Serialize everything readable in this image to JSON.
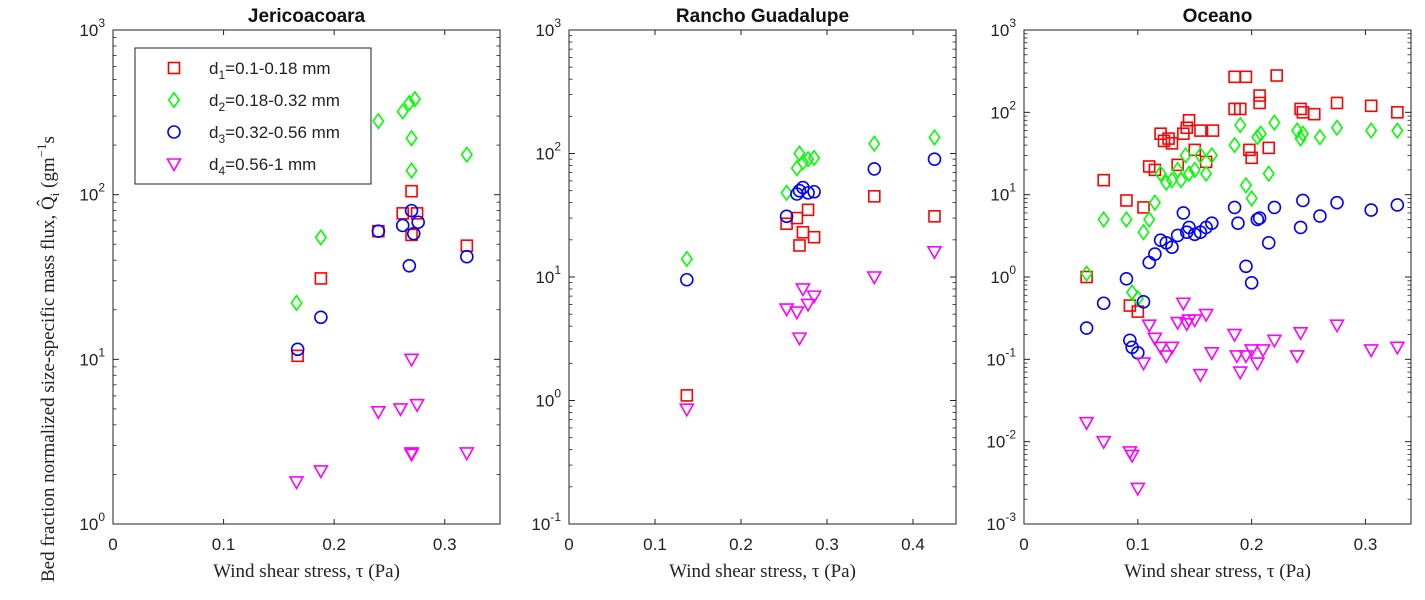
{
  "figure": {
    "ylabel": "Bed fraction normalized size-specific mass flux, Q̂",
    "ylabel_sub": "i",
    "ylabel_units": " (gm",
    "ylabel_units_sup": "−1",
    "ylabel_units_tail": "s"
  },
  "legend": {
    "entries": [
      {
        "prefix": "d",
        "sub": "1",
        "text": "=0.1-0.18 mm",
        "marker": "square",
        "color": "#ff0000"
      },
      {
        "prefix": "d",
        "sub": "2",
        "text": "=0.18-0.32 mm",
        "marker": "diamond",
        "color": "#00ff00"
      },
      {
        "prefix": "d",
        "sub": "3",
        "text": "=0.32-0.56 mm",
        "marker": "circle",
        "color": "#0000ff"
      },
      {
        "prefix": "d",
        "sub": "4",
        "text": "=0.56-1 mm",
        "marker": "triangle",
        "color": "#ff00ff"
      }
    ]
  },
  "chart_data": [
    {
      "type": "scatter",
      "title": "Jericoacoara",
      "xlabel": "Wind shear stress, τ (Pa)",
      "xlim": [
        0,
        0.35
      ],
      "ylim": [
        1,
        1000
      ],
      "yscale": "log",
      "xticks": [
        "0",
        "0.1",
        "0.2",
        "0.3"
      ],
      "xtick_values": [
        0,
        0.1,
        0.2,
        0.3
      ],
      "ytick_exponents": [
        0,
        1,
        2,
        3
      ],
      "series": [
        {
          "name": "d1=0.1-0.18 mm",
          "marker": "square",
          "color": "#ff0000",
          "points": [
            [
              0.167,
              10.5
            ],
            [
              0.188,
              31
            ],
            [
              0.24,
              60
            ],
            [
              0.262,
              77
            ],
            [
              0.27,
              105
            ],
            [
              0.275,
              77
            ],
            [
              0.27,
              57
            ],
            [
              0.32,
              49
            ]
          ]
        },
        {
          "name": "d2=0.18-0.32 mm",
          "marker": "diamond",
          "color": "#00ff00",
          "points": [
            [
              0.166,
              22
            ],
            [
              0.188,
              55
            ],
            [
              0.24,
              280
            ],
            [
              0.262,
              320
            ],
            [
              0.268,
              360
            ],
            [
              0.273,
              380
            ],
            [
              0.27,
              220
            ],
            [
              0.27,
              140
            ],
            [
              0.32,
              175
            ]
          ]
        },
        {
          "name": "d3=0.32-0.56 mm",
          "marker": "circle",
          "color": "#0000ff",
          "points": [
            [
              0.167,
              11.5
            ],
            [
              0.188,
              18
            ],
            [
              0.24,
              60
            ],
            [
              0.262,
              65
            ],
            [
              0.27,
              80
            ],
            [
              0.272,
              58
            ],
            [
              0.268,
              37
            ],
            [
              0.276,
              68
            ],
            [
              0.32,
              42
            ]
          ]
        },
        {
          "name": "d4=0.56-1 mm",
          "marker": "triangle",
          "color": "#ff00ff",
          "points": [
            [
              0.166,
              1.8
            ],
            [
              0.188,
              2.1
            ],
            [
              0.24,
              4.8
            ],
            [
              0.26,
              5
            ],
            [
              0.27,
              10
            ],
            [
              0.275,
              5.3
            ],
            [
              0.27,
              2.7
            ],
            [
              0.27,
              2.65
            ],
            [
              0.32,
              2.7
            ]
          ]
        }
      ]
    },
    {
      "type": "scatter",
      "title": "Rancho Guadalupe",
      "xlabel": "Wind shear stress, τ (Pa)",
      "xlim": [
        0,
        0.45
      ],
      "ylim": [
        0.1,
        1000
      ],
      "yscale": "log",
      "xticks": [
        "0",
        "0.1",
        "0.2",
        "0.3",
        "0.4"
      ],
      "xtick_values": [
        0,
        0.1,
        0.2,
        0.3,
        0.4
      ],
      "ytick_exponents": [
        -1,
        0,
        1,
        2,
        3
      ],
      "series": [
        {
          "name": "d1=0.1-0.18 mm",
          "marker": "square",
          "color": "#ff0000",
          "points": [
            [
              0.137,
              1.1
            ],
            [
              0.253,
              27
            ],
            [
              0.265,
              30
            ],
            [
              0.268,
              18
            ],
            [
              0.272,
              23
            ],
            [
              0.278,
              35
            ],
            [
              0.285,
              21
            ],
            [
              0.355,
              45
            ],
            [
              0.425,
              31
            ]
          ]
        },
        {
          "name": "d2=0.18-0.32 mm",
          "marker": "diamond",
          "color": "#00ff00",
          "points": [
            [
              0.137,
              14
            ],
            [
              0.253,
              48
            ],
            [
              0.265,
              76
            ],
            [
              0.268,
              100
            ],
            [
              0.272,
              85
            ],
            [
              0.278,
              90
            ],
            [
              0.285,
              92
            ],
            [
              0.355,
              120
            ],
            [
              0.425,
              135
            ]
          ]
        },
        {
          "name": "d3=0.32-0.56 mm",
          "marker": "circle",
          "color": "#0000ff",
          "points": [
            [
              0.137,
              9.5
            ],
            [
              0.253,
              31
            ],
            [
              0.265,
              47
            ],
            [
              0.268,
              50
            ],
            [
              0.272,
              53
            ],
            [
              0.278,
              48
            ],
            [
              0.285,
              49
            ],
            [
              0.355,
              75
            ],
            [
              0.425,
              90
            ]
          ]
        },
        {
          "name": "d4=0.56-1 mm",
          "marker": "triangle",
          "color": "#ff00ff",
          "points": [
            [
              0.137,
              0.85
            ],
            [
              0.253,
              5.5
            ],
            [
              0.265,
              5.2
            ],
            [
              0.268,
              3.2
            ],
            [
              0.272,
              8
            ],
            [
              0.278,
              6
            ],
            [
              0.285,
              7
            ],
            [
              0.355,
              10
            ],
            [
              0.425,
              16
            ]
          ]
        }
      ]
    },
    {
      "type": "scatter",
      "title": "Oceano",
      "xlabel": "Wind shear stress, τ (Pa)",
      "xlim": [
        0,
        0.34
      ],
      "ylim": [
        0.001,
        1000
      ],
      "yscale": "log",
      "xticks": [
        "0",
        "0.1",
        "0.2",
        "0.3"
      ],
      "xtick_values": [
        0,
        0.1,
        0.2,
        0.3
      ],
      "ytick_exponents": [
        -3,
        -2,
        -1,
        0,
        1,
        2,
        3
      ],
      "series": [
        {
          "name": "d1=0.1-0.18 mm",
          "marker": "square",
          "color": "#ff0000",
          "points": [
            [
              0.055,
              1
            ],
            [
              0.07,
              15
            ],
            [
              0.09,
              8.5
            ],
            [
              0.093,
              0.45
            ],
            [
              0.1,
              0.38
            ],
            [
              0.105,
              7
            ],
            [
              0.11,
              22
            ],
            [
              0.115,
              20
            ],
            [
              0.12,
              55
            ],
            [
              0.123,
              45
            ],
            [
              0.127,
              48
            ],
            [
              0.13,
              42
            ],
            [
              0.135,
              23
            ],
            [
              0.14,
              55
            ],
            [
              0.143,
              65
            ],
            [
              0.145,
              80
            ],
            [
              0.15,
              35
            ],
            [
              0.155,
              60
            ],
            [
              0.16,
              25
            ],
            [
              0.166,
              60
            ],
            [
              0.185,
              110
            ],
            [
              0.185,
              270
            ],
            [
              0.19,
              110
            ],
            [
              0.195,
              270
            ],
            [
              0.198,
              35
            ],
            [
              0.2,
              28
            ],
            [
              0.207,
              160
            ],
            [
              0.207,
              130
            ],
            [
              0.215,
              37
            ],
            [
              0.222,
              280
            ],
            [
              0.243,
              110
            ],
            [
              0.245,
              100
            ],
            [
              0.255,
              95
            ],
            [
              0.275,
              130
            ],
            [
              0.305,
              120
            ],
            [
              0.328,
              100
            ]
          ]
        },
        {
          "name": "d2=0.18-0.32 mm",
          "marker": "diamond",
          "color": "#00ff00",
          "points": [
            [
              0.055,
              1.1
            ],
            [
              0.07,
              5
            ],
            [
              0.09,
              5
            ],
            [
              0.095,
              0.65
            ],
            [
              0.1,
              0.55
            ],
            [
              0.105,
              3.5
            ],
            [
              0.11,
              5
            ],
            [
              0.115,
              8
            ],
            [
              0.12,
              18
            ],
            [
              0.125,
              14
            ],
            [
              0.13,
              15
            ],
            [
              0.135,
              20
            ],
            [
              0.138,
              15
            ],
            [
              0.142,
              30
            ],
            [
              0.145,
              18
            ],
            [
              0.15,
              20
            ],
            [
              0.155,
              30
            ],
            [
              0.16,
              18
            ],
            [
              0.165,
              30
            ],
            [
              0.185,
              40
            ],
            [
              0.19,
              70
            ],
            [
              0.195,
              13
            ],
            [
              0.2,
              9
            ],
            [
              0.205,
              50
            ],
            [
              0.208,
              55
            ],
            [
              0.215,
              18
            ],
            [
              0.22,
              75
            ],
            [
              0.24,
              60
            ],
            [
              0.243,
              48
            ],
            [
              0.245,
              55
            ],
            [
              0.26,
              50
            ],
            [
              0.275,
              65
            ],
            [
              0.305,
              60
            ],
            [
              0.328,
              60
            ]
          ]
        },
        {
          "name": "d3=0.32-0.56 mm",
          "marker": "circle",
          "color": "#0000ff",
          "points": [
            [
              0.055,
              0.24
            ],
            [
              0.07,
              0.48
            ],
            [
              0.09,
              0.95
            ],
            [
              0.093,
              0.17
            ],
            [
              0.095,
              0.14
            ],
            [
              0.1,
              0.12
            ],
            [
              0.105,
              0.5
            ],
            [
              0.11,
              1.5
            ],
            [
              0.115,
              1.9
            ],
            [
              0.12,
              2.8
            ],
            [
              0.125,
              2.6
            ],
            [
              0.13,
              2.3
            ],
            [
              0.135,
              3.2
            ],
            [
              0.14,
              6
            ],
            [
              0.143,
              3.5
            ],
            [
              0.145,
              4
            ],
            [
              0.15,
              3.3
            ],
            [
              0.155,
              3.5
            ],
            [
              0.16,
              4
            ],
            [
              0.165,
              4.5
            ],
            [
              0.185,
              7
            ],
            [
              0.188,
              4.5
            ],
            [
              0.195,
              1.35
            ],
            [
              0.2,
              0.85
            ],
            [
              0.205,
              5
            ],
            [
              0.207,
              5.2
            ],
            [
              0.215,
              2.6
            ],
            [
              0.22,
              7
            ],
            [
              0.243,
              4
            ],
            [
              0.245,
              8.5
            ],
            [
              0.26,
              5.5
            ],
            [
              0.275,
              8
            ],
            [
              0.305,
              6.5
            ],
            [
              0.328,
              7.5
            ]
          ]
        },
        {
          "name": "d4=0.56-1 mm",
          "marker": "triangle",
          "color": "#ff00ff",
          "points": [
            [
              0.055,
              0.017
            ],
            [
              0.07,
              0.01
            ],
            [
              0.093,
              0.0075
            ],
            [
              0.095,
              0.0068
            ],
            [
              0.1,
              0.0027
            ],
            [
              0.105,
              0.09
            ],
            [
              0.11,
              0.26
            ],
            [
              0.115,
              0.18
            ],
            [
              0.12,
              0.14
            ],
            [
              0.125,
              0.11
            ],
            [
              0.13,
              0.14
            ],
            [
              0.135,
              0.28
            ],
            [
              0.14,
              0.48
            ],
            [
              0.143,
              0.27
            ],
            [
              0.145,
              0.3
            ],
            [
              0.15,
              0.3
            ],
            [
              0.155,
              0.065
            ],
            [
              0.16,
              0.35
            ],
            [
              0.165,
              0.12
            ],
            [
              0.185,
              0.2
            ],
            [
              0.187,
              0.11
            ],
            [
              0.19,
              0.07
            ],
            [
              0.195,
              0.11
            ],
            [
              0.2,
              0.13
            ],
            [
              0.205,
              0.09
            ],
            [
              0.21,
              0.13
            ],
            [
              0.22,
              0.17
            ],
            [
              0.24,
              0.11
            ],
            [
              0.243,
              0.21
            ],
            [
              0.275,
              0.26
            ],
            [
              0.305,
              0.13
            ],
            [
              0.328,
              0.14
            ]
          ]
        }
      ]
    }
  ]
}
